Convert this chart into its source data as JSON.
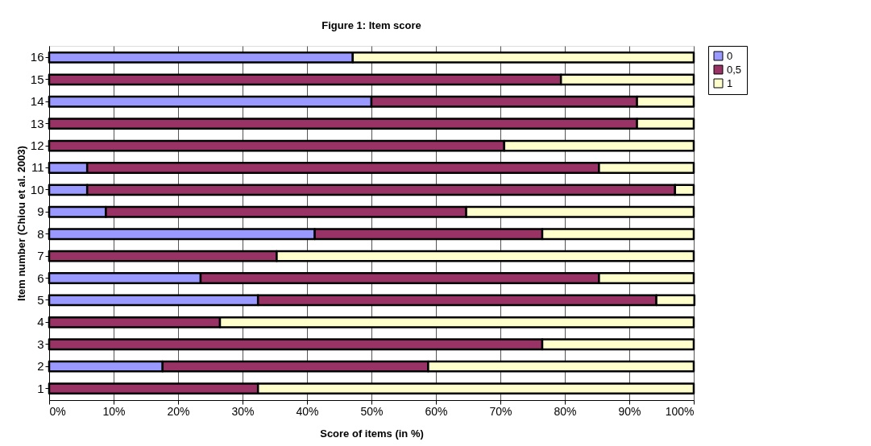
{
  "chart_data": {
    "type": "bar",
    "orientation": "horizontal",
    "stacked": true,
    "title": "Figure 1: Item score",
    "xlabel": "Score of items (in %)",
    "ylabel": "Item number (Chiou et al. 2003)",
    "categories": [
      "16",
      "15",
      "14",
      "13",
      "12",
      "11",
      "10",
      "9",
      "8",
      "7",
      "6",
      "5",
      "4",
      "3",
      "2",
      "1"
    ],
    "series": [
      {
        "name": "0",
        "color": "#9999ff",
        "values": [
          47.1,
          0,
          50,
          0,
          0,
          5.9,
          5.9,
          8.8,
          41.2,
          0,
          23.5,
          32.4,
          0,
          0,
          17.6,
          0
        ]
      },
      {
        "name": "0,5",
        "color": "#993366",
        "values": [
          0,
          79.4,
          41.2,
          91.2,
          70.6,
          79.4,
          91.2,
          55.9,
          35.3,
          35.3,
          61.8,
          61.8,
          26.5,
          76.5,
          41.2,
          32.4
        ]
      },
      {
        "name": "1",
        "color": "#ffffcc",
        "values": [
          52.9,
          20.6,
          8.8,
          8.8,
          29.4,
          14.7,
          2.9,
          35.3,
          23.5,
          64.7,
          14.7,
          5.9,
          73.5,
          23.5,
          41.2,
          67.6
        ]
      }
    ],
    "xlim": [
      0,
      100
    ],
    "xticks": [
      {
        "value": 0,
        "label": "0%"
      },
      {
        "value": 10,
        "label": "10%"
      },
      {
        "value": 20,
        "label": "20%"
      },
      {
        "value": 30,
        "label": "30%"
      },
      {
        "value": 40,
        "label": "40%"
      },
      {
        "value": 50,
        "label": "50%"
      },
      {
        "value": 60,
        "label": "60%"
      },
      {
        "value": 70,
        "label": "70%"
      },
      {
        "value": 80,
        "label": "80%"
      },
      {
        "value": 90,
        "label": "90%"
      },
      {
        "value": 100,
        "label": "100%"
      }
    ],
    "grid": "x",
    "legend": "right"
  }
}
